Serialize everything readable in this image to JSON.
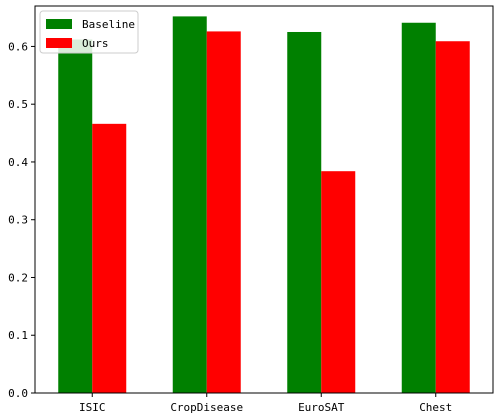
{
  "chart_data": {
    "type": "bar",
    "title": "",
    "xlabel": "",
    "ylabel": "",
    "categories": [
      "ISIC",
      "CropDisease",
      "EuroSAT",
      "Chest"
    ],
    "series": [
      {
        "name": "Baseline",
        "values": [
          0.612,
          0.652,
          0.625,
          0.641
        ],
        "color": "#008000"
      },
      {
        "name": "Ours",
        "values": [
          0.466,
          0.626,
          0.384,
          0.609
        ],
        "color": "#ff0000"
      }
    ],
    "ylim": [
      0,
      0.67
    ],
    "yticks": [
      "0.0",
      "0.1",
      "0.2",
      "0.3",
      "0.4",
      "0.5",
      "0.6"
    ],
    "grid": false,
    "legend": "top-left"
  }
}
